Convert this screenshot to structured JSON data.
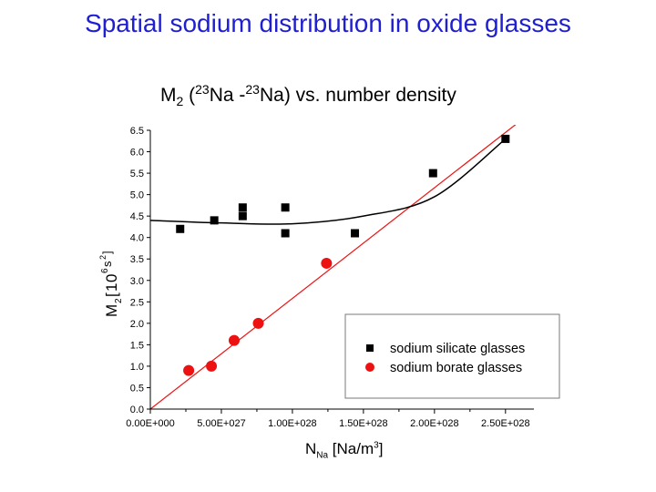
{
  "slide": {
    "title": "Spatial sodium distribution in oxide glasses",
    "subtitle_m": "M",
    "subtitle_sub": "2",
    "subtitle_open": " (",
    "subtitle_sup1": "23",
    "subtitle_na1": "Na -",
    "subtitle_sup2": "23",
    "subtitle_rest": "Na)  vs. number density"
  },
  "chart_data": {
    "type": "scatter",
    "xlabel_main": "N",
    "xlabel_sub": "Na",
    "xlabel_unit": " [Na/m",
    "xlabel_sup": "3",
    "xlabel_close": "]",
    "ylabel_parts": [
      "M",
      "2",
      "[",
      "1",
      "0",
      "6",
      "s",
      "2",
      "]"
    ],
    "xlim": [
      0,
      2.7e+28
    ],
    "ylim": [
      0,
      6.5
    ],
    "x_ticks": [
      0,
      5e+27,
      1e+28,
      1.5e+28,
      2e+28,
      2.5e+28
    ],
    "x_tick_labels": [
      "0.00E+000",
      "5.00E+027",
      "1.00E+028",
      "1.50E+028",
      "2.00E+028",
      "2.50E+028"
    ],
    "y_ticks": [
      0,
      0.5,
      1,
      1.5,
      2,
      2.5,
      3,
      3.5,
      4,
      4.5,
      5,
      5.5,
      6,
      6.5
    ],
    "y_tick_labels": [
      "0.0",
      "0.5",
      "1.0",
      "1.5",
      "2.0",
      "2.5",
      "3.0",
      "3.5",
      "4.0",
      "4.5",
      "5.0",
      "5.5",
      "6.0",
      "6.5"
    ],
    "legend_position": "lower-right",
    "series": [
      {
        "name": "sodium silicate glasses",
        "marker": "square",
        "color": "#000000",
        "x": [
          2.1e+27,
          4.5e+27,
          6.5e+27,
          6.5e+27,
          9.5e+27,
          9.5e+27,
          1.44e+28,
          1.99e+28,
          2.5e+28
        ],
        "y": [
          4.2,
          4.4,
          4.5,
          4.7,
          4.1,
          4.7,
          4.1,
          5.5,
          6.3
        ]
      },
      {
        "name": "sodium borate glasses",
        "marker": "circle",
        "color": "#ee1111",
        "x": [
          2.7e+27,
          4.3e+27,
          5.9e+27,
          7.6e+27,
          1.24e+28
        ],
        "y": [
          0.9,
          1.0,
          1.6,
          2.0,
          3.4
        ]
      }
    ],
    "fits": [
      {
        "color": "#ee1111",
        "kind": "linear",
        "x": [
          0,
          2.5e+28
        ],
        "y": [
          0,
          6.45
        ]
      },
      {
        "color": "#000000",
        "kind": "polynomial",
        "x": [
          0,
          5e+27,
          1e+28,
          1.5e+28,
          2e+28,
          2.5e+28
        ],
        "y": [
          4.4,
          4.34,
          4.32,
          4.5,
          4.95,
          6.3
        ]
      }
    ]
  }
}
